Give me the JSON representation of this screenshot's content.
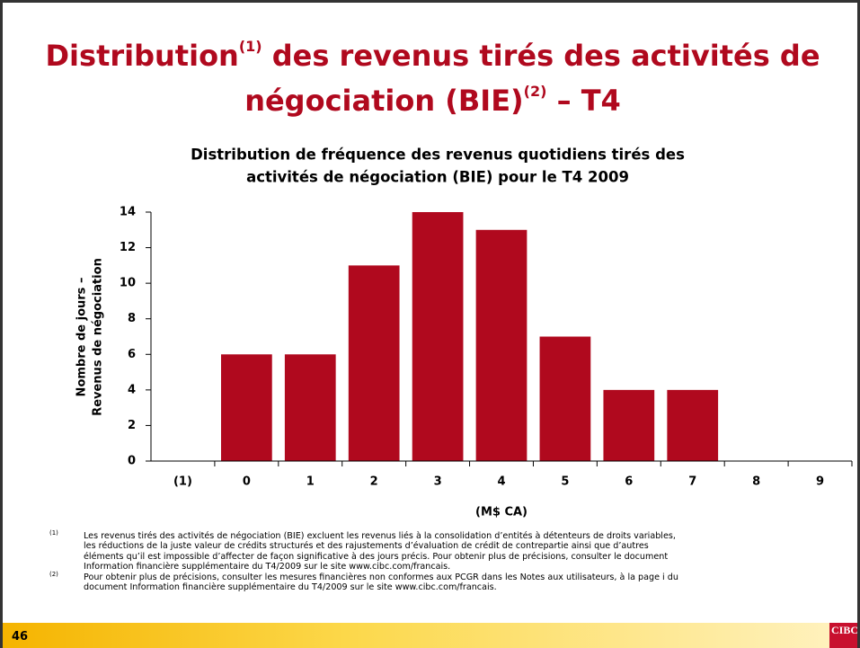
{
  "slide": {
    "title": [
      "Distribution",
      "(1)",
      " des revenus tirés des activités de négociation (BIE)",
      "(2)",
      " – T4"
    ],
    "footnotes": [
      {
        "marker": "(1)",
        "lines": [
          "Les revenus tirés des activités de négociation (BIE) excluent les revenus liés à la consolidation d’entités à détenteurs de droits variables,",
          "les réductions de la juste valeur de crédits structurés et des rajustements d’évaluation de crédit de contrepartie ainsi que d’autres",
          "éléments qu’il est impossible d’affecter de façon significative à des jours précis. Pour obtenir plus de précisions, consulter le document",
          "Information financière supplémentaire du T4/2009 sur le site www.cibc.com/francais."
        ]
      },
      {
        "marker": "(2)",
        "lines": [
          "Pour obtenir plus de précisions, consulter les mesures financières non conformes aux PCGR dans les Notes aux utilisateurs, à la page i du",
          "document Information financière supplémentaire du T4/2009 sur le site www.cibc.com/francais."
        ]
      }
    ],
    "page_number": "46",
    "logo": "CIBC"
  },
  "chart_data": {
    "type": "bar",
    "title": [
      "Distribution de fréquence des revenus quotidiens tirés des",
      "activités de négociation (BIE) pour le T4 2009"
    ],
    "ylabel": [
      "Nombre de jours –",
      "Revenus de négociation"
    ],
    "xlabel": "(M$ CA)",
    "categories": [
      "(1)",
      "0",
      "1",
      "2",
      "3",
      "4",
      "5",
      "6",
      "7",
      "8",
      "9"
    ],
    "values": [
      0,
      6,
      6,
      11,
      14,
      13,
      7,
      4,
      4,
      0,
      0
    ],
    "color": "#b0091e",
    "ylim": [
      0,
      14
    ],
    "yticks": [
      0,
      2,
      4,
      6,
      8,
      10,
      12,
      14
    ]
  }
}
